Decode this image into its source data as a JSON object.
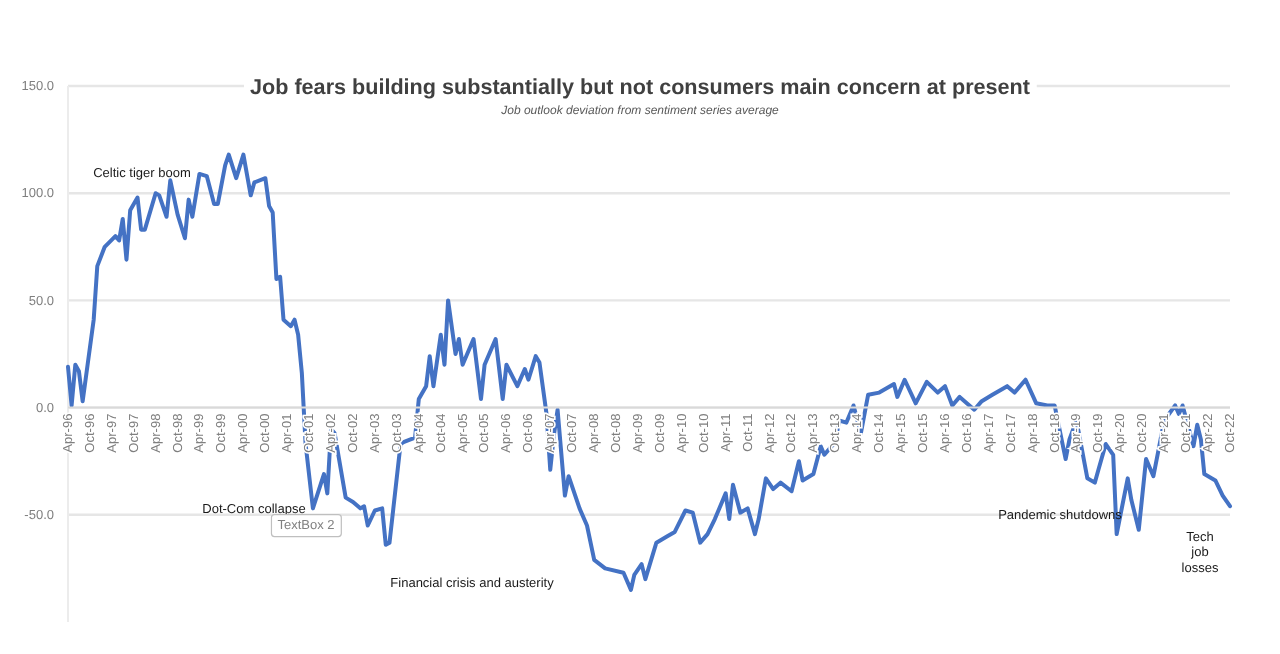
{
  "chart_data": {
    "type": "line",
    "title": "Job fears building substantially but not consumers main concern at present",
    "subtitle": "Job outlook deviation from sentiment series average",
    "x": [
      "1996-04",
      "1996-05",
      "1996-06",
      "1996-07",
      "1996-08",
      "1996-11",
      "1996-12",
      "1997-02",
      "1997-05",
      "1997-06",
      "1997-07",
      "1997-08",
      "1997-09",
      "1997-11",
      "1997-12",
      "1998-01",
      "1998-04",
      "1998-05",
      "1998-07",
      "1998-08",
      "1998-10",
      "1998-12",
      "1999-01",
      "1999-02",
      "1999-04",
      "1999-06",
      "1999-08",
      "1999-09",
      "1999-11",
      "1999-12",
      "2000-02",
      "2000-04",
      "2000-06",
      "2000-07",
      "2000-10",
      "2000-11",
      "2000-12",
      "2001-01",
      "2001-02",
      "2001-03",
      "2001-05",
      "2001-06",
      "2001-07",
      "2001-08",
      "2001-09",
      "2001-11",
      "2002-02",
      "2002-03",
      "2002-04",
      "2002-05",
      "2002-08",
      "2002-10",
      "2002-12",
      "2003-01",
      "2003-02",
      "2003-04",
      "2003-06",
      "2003-07",
      "2003-08",
      "2003-11",
      "2003-12",
      "2004-03",
      "2004-04",
      "2004-06",
      "2004-07",
      "2004-08",
      "2004-10",
      "2004-11",
      "2004-12",
      "2005-02",
      "2005-03",
      "2005-04",
      "2005-07",
      "2005-09",
      "2005-10",
      "2006-01",
      "2006-03",
      "2006-04",
      "2006-07",
      "2006-09",
      "2006-10",
      "2006-12",
      "2007-01",
      "2007-03",
      "2007-04",
      "2007-05",
      "2007-06",
      "2007-08",
      "2007-09",
      "2007-12",
      "2008-02",
      "2008-04",
      "2008-07",
      "2008-12",
      "2009-02",
      "2009-03",
      "2009-05",
      "2009-06",
      "2009-09",
      "2009-12",
      "2010-02",
      "2010-05",
      "2010-07",
      "2010-09",
      "2010-11",
      "2011-01",
      "2011-04",
      "2011-05",
      "2011-06",
      "2011-08",
      "2011-10",
      "2011-12",
      "2012-01",
      "2012-03",
      "2012-05",
      "2012-07",
      "2012-10",
      "2012-12",
      "2013-01",
      "2013-04",
      "2013-06",
      "2013-07",
      "2013-10",
      "2013-11",
      "2014-01",
      "2014-03",
      "2014-05",
      "2014-07",
      "2014-10",
      "2015-02",
      "2015-03",
      "2015-05",
      "2015-08",
      "2015-11",
      "2016-02",
      "2016-04",
      "2016-06",
      "2016-08",
      "2016-12",
      "2017-02",
      "2017-05",
      "2017-09",
      "2017-11",
      "2018-02",
      "2018-05",
      "2018-08",
      "2018-10",
      "2019-01",
      "2019-02",
      "2019-04",
      "2019-07",
      "2019-09",
      "2019-10",
      "2019-12",
      "2020-02",
      "2020-03",
      "2020-06",
      "2020-07",
      "2020-09",
      "2020-11",
      "2021-01",
      "2021-03",
      "2021-04",
      "2021-07",
      "2021-08",
      "2021-09",
      "2021-12",
      "2022-01",
      "2022-02",
      "2022-03",
      "2022-06",
      "2022-08",
      "2022-10"
    ],
    "series": [
      {
        "color": "#4472c4",
        "values": [
          19,
          1,
          20,
          17,
          3,
          41,
          66,
          75,
          80,
          78,
          88,
          69,
          92,
          98,
          83,
          83,
          100,
          99,
          89,
          106,
          90,
          79,
          97,
          89,
          109,
          108,
          95,
          95,
          113,
          118,
          107,
          118,
          99,
          105,
          107,
          94,
          91,
          60,
          61,
          41,
          38,
          41,
          34,
          16,
          -17,
          -47,
          -31,
          -40,
          -10,
          -12,
          -42,
          -44,
          -47,
          -46,
          -55,
          -48,
          -47,
          -64,
          -63,
          -17,
          -16,
          -14,
          4,
          10,
          24,
          10,
          34,
          20,
          50,
          25,
          32,
          20,
          32,
          4,
          20,
          32,
          4,
          20,
          10,
          18,
          13,
          24,
          21,
          -3,
          -29,
          -13,
          -1,
          -41,
          -32,
          -47,
          -55,
          -71,
          -75,
          -77,
          -85,
          -78,
          -73,
          -80,
          -63,
          -60,
          -58,
          -48,
          -49,
          -63,
          -59,
          -52,
          -40,
          -52,
          -36,
          -49,
          -47,
          -59,
          -52,
          -33,
          -38,
          -35,
          -39,
          -25,
          -34,
          -31,
          -18,
          -22,
          -16,
          -6,
          -7,
          1,
          -12,
          6,
          7,
          11,
          5,
          13,
          2,
          12,
          7,
          10,
          1,
          5,
          -1,
          3,
          6,
          10,
          7,
          13,
          2,
          1,
          1,
          -24,
          -15,
          -6,
          -33,
          -35,
          -29,
          -17,
          -22,
          -59,
          -33,
          -43,
          -57,
          -24,
          -32,
          -15,
          -6,
          1,
          -3,
          1,
          -18,
          -8,
          -15,
          -31,
          -34,
          -41,
          -46
        ]
      }
    ],
    "xlim": [
      "1996-04",
      "2022-10"
    ],
    "xticks": [
      {
        "value": "1996-04",
        "label": "Apr-96"
      },
      {
        "value": "1996-10",
        "label": "Oct-96"
      },
      {
        "value": "1997-04",
        "label": "Apr-97"
      },
      {
        "value": "1997-10",
        "label": "Oct-97"
      },
      {
        "value": "1998-04",
        "label": "Apr-98"
      },
      {
        "value": "1998-10",
        "label": "Oct-98"
      },
      {
        "value": "1999-04",
        "label": "Apr-99"
      },
      {
        "value": "1999-10",
        "label": "Oct-99"
      },
      {
        "value": "2000-04",
        "label": "Apr-00"
      },
      {
        "value": "2000-10",
        "label": "Oct-00"
      },
      {
        "value": "2001-04",
        "label": "Apr-01"
      },
      {
        "value": "2001-10",
        "label": "Oct-01"
      },
      {
        "value": "2002-04",
        "label": "Apr-02"
      },
      {
        "value": "2002-10",
        "label": "Oct-02"
      },
      {
        "value": "2003-04",
        "label": "Apr-03"
      },
      {
        "value": "2003-10",
        "label": "Oct-03"
      },
      {
        "value": "2004-04",
        "label": "Apr-04"
      },
      {
        "value": "2004-10",
        "label": "Oct-04"
      },
      {
        "value": "2005-04",
        "label": "Apr-05"
      },
      {
        "value": "2005-10",
        "label": "Oct-05"
      },
      {
        "value": "2006-04",
        "label": "Apr-06"
      },
      {
        "value": "2006-10",
        "label": "Oct-06"
      },
      {
        "value": "2007-04",
        "label": "Apr-07"
      },
      {
        "value": "2007-10",
        "label": "Oct-07"
      },
      {
        "value": "2008-04",
        "label": "Apr-08"
      },
      {
        "value": "2008-10",
        "label": "Oct-08"
      },
      {
        "value": "2009-04",
        "label": "Apr-09"
      },
      {
        "value": "2009-10",
        "label": "Oct-09"
      },
      {
        "value": "2010-04",
        "label": "Apr-10"
      },
      {
        "value": "2010-10",
        "label": "Oct-10"
      },
      {
        "value": "2011-04",
        "label": "Apr-11"
      },
      {
        "value": "2011-10",
        "label": "Oct-11"
      },
      {
        "value": "2012-04",
        "label": "Apr-12"
      },
      {
        "value": "2012-10",
        "label": "Oct-12"
      },
      {
        "value": "2013-04",
        "label": "Apr-13"
      },
      {
        "value": "2013-10",
        "label": "Oct-13"
      },
      {
        "value": "2014-04",
        "label": "Apr-14"
      },
      {
        "value": "2014-10",
        "label": "Oct-14"
      },
      {
        "value": "2015-04",
        "label": "Apr-15"
      },
      {
        "value": "2015-10",
        "label": "Oct-15"
      },
      {
        "value": "2016-04",
        "label": "Apr-16"
      },
      {
        "value": "2016-10",
        "label": "Oct-16"
      },
      {
        "value": "2017-04",
        "label": "Apr-17"
      },
      {
        "value": "2017-10",
        "label": "Oct-17"
      },
      {
        "value": "2018-04",
        "label": "Apr-18"
      },
      {
        "value": "2018-10",
        "label": "Oct-18"
      },
      {
        "value": "2019-04",
        "label": "Apr-19"
      },
      {
        "value": "2019-10",
        "label": "Oct-19"
      },
      {
        "value": "2020-04",
        "label": "Apr-20"
      },
      {
        "value": "2020-10",
        "label": "Oct-20"
      },
      {
        "value": "2021-04",
        "label": "Apr-21"
      },
      {
        "value": "2021-10",
        "label": "Oct-21"
      },
      {
        "value": "2022-04",
        "label": "Apr-22"
      },
      {
        "value": "2022-10",
        "label": "Oct-22"
      }
    ],
    "ylim": [
      -100,
      150
    ],
    "yticks": [
      {
        "value": -50,
        "label": "-50.0"
      },
      {
        "value": 0,
        "label": "0.0"
      },
      {
        "value": 50,
        "label": "50.0"
      },
      {
        "value": 100,
        "label": "100.0"
      },
      {
        "value": 150,
        "label": "150.0"
      }
    ],
    "grid": "y",
    "marker": "none",
    "line_style": "solid",
    "annotations": [
      "Celtic tiger boom",
      "Dot-Com collapse",
      "TextBox 2",
      "Financial crisis and austerity",
      "Pandemic shutdowns",
      "Tech job losses"
    ]
  }
}
